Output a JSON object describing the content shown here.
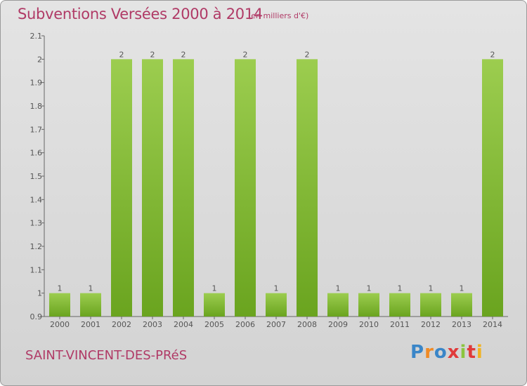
{
  "header": {
    "title": "Subventions Versées 2000 à 2014",
    "unit_note": "(en milliers d'€)"
  },
  "footer": {
    "commune": "SAINT-VINCENT-DES-PRéS",
    "logo_letters": [
      "P",
      "r",
      "o",
      "x",
      "i",
      "t",
      "i"
    ]
  },
  "colors": {
    "title": "#b03a66",
    "bar_light": "#9ccd4f",
    "bar_dark": "#6aa41f",
    "logo": [
      "#3a86c8",
      "#f08a24",
      "#3a86c8",
      "#e03a3a",
      "#8bc53f",
      "#e03a3a",
      "#f0b323"
    ]
  },
  "chart_data": {
    "type": "bar",
    "categories": [
      "2000",
      "2001",
      "2002",
      "2003",
      "2004",
      "2005",
      "2006",
      "2007",
      "2008",
      "2009",
      "2010",
      "2011",
      "2012",
      "2013",
      "2014"
    ],
    "values": [
      1,
      1,
      2,
      2,
      2,
      1,
      2,
      1,
      2,
      1,
      1,
      1,
      1,
      1,
      2
    ],
    "data_labels": [
      "1",
      "1",
      "2",
      "2",
      "2",
      "1",
      "2",
      "1",
      "2",
      "1",
      "1",
      "1",
      "1",
      "1",
      "2"
    ],
    "ylim": [
      0.9,
      2.1
    ],
    "yticks": [
      0.9,
      1,
      1.1,
      1.2,
      1.3,
      1.4,
      1.5,
      1.6,
      1.7,
      1.8,
      1.9,
      2,
      2.1
    ],
    "ytick_labels": [
      "0.9",
      "1",
      "1.1",
      "1.2",
      "1.3",
      "1.4",
      "1.5",
      "1.6",
      "1.7",
      "1.8",
      "1.9",
      "2",
      "2.1"
    ],
    "grid": false
  }
}
